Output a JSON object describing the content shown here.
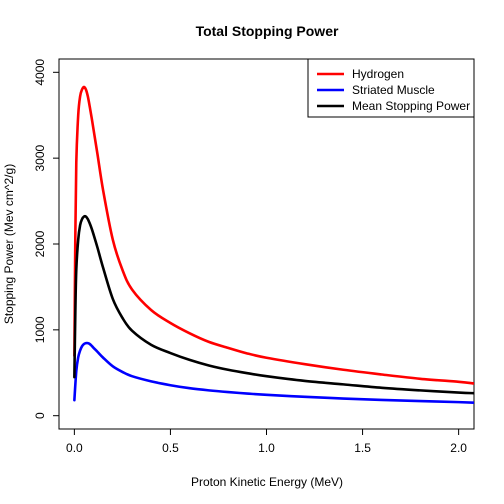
{
  "chart_data": {
    "type": "line",
    "title": "Total Stopping Power",
    "xlabel": "Proton Kinetic Energy (MeV)",
    "ylabel": "Stopping Power (Mev cm^2/g)",
    "xlim": [
      -0.08,
      2.08
    ],
    "ylim": [
      -155,
      4155
    ],
    "xticks": [
      0,
      0.5,
      1,
      1.5,
      2
    ],
    "xtick_labels": [
      "0.0",
      "0.5",
      "1.0",
      "1.5",
      "2.0"
    ],
    "yticks": [
      0,
      1000,
      2000,
      3000,
      4000
    ],
    "ytick_labels": [
      "0",
      "1000",
      "2000",
      "3000",
      "4000"
    ],
    "grid": false,
    "legend_position": "top-right",
    "series": [
      {
        "name": "Hydrogen",
        "color": "#ff0000",
        "x": [
          0.0,
          0.005,
          0.01,
          0.02,
          0.03,
          0.04,
          0.05,
          0.06,
          0.07,
          0.08,
          0.09,
          0.1,
          0.12,
          0.15,
          0.2,
          0.25,
          0.3,
          0.4,
          0.5,
          0.6,
          0.7,
          0.8,
          0.9,
          1.0,
          1.2,
          1.4,
          1.6,
          1.8,
          2.0,
          2.08
        ],
        "y": [
          700,
          2100,
          2950,
          3500,
          3720,
          3800,
          3830,
          3800,
          3720,
          3600,
          3470,
          3330,
          3050,
          2620,
          2050,
          1700,
          1470,
          1230,
          1080,
          960,
          860,
          790,
          725,
          675,
          600,
          535,
          480,
          430,
          395,
          375
        ]
      },
      {
        "name": "Striated Muscle",
        "color": "#0000ff",
        "x": [
          0.0,
          0.01,
          0.02,
          0.03,
          0.04,
          0.05,
          0.06,
          0.07,
          0.08,
          0.09,
          0.1,
          0.12,
          0.15,
          0.2,
          0.25,
          0.3,
          0.4,
          0.5,
          0.6,
          0.7,
          0.8,
          0.9,
          1.0,
          1.2,
          1.4,
          1.6,
          1.8,
          2.0,
          2.08
        ],
        "y": [
          180,
          520,
          680,
          760,
          810,
          835,
          845,
          845,
          835,
          815,
          790,
          745,
          675,
          575,
          510,
          460,
          400,
          355,
          320,
          295,
          275,
          258,
          243,
          220,
          200,
          184,
          170,
          158,
          152
        ]
      },
      {
        "name": "Mean Stopping Power",
        "color": "#000000",
        "x": [
          0.0,
          0.005,
          0.01,
          0.02,
          0.03,
          0.04,
          0.05,
          0.06,
          0.07,
          0.08,
          0.09,
          0.1,
          0.12,
          0.15,
          0.2,
          0.25,
          0.3,
          0.4,
          0.5,
          0.6,
          0.7,
          0.8,
          0.9,
          1.0,
          1.2,
          1.4,
          1.6,
          1.8,
          2.0,
          2.08
        ],
        "y": [
          450,
          1200,
          1700,
          2050,
          2220,
          2290,
          2320,
          2320,
          2290,
          2240,
          2180,
          2110,
          1960,
          1720,
          1360,
          1140,
          990,
          825,
          730,
          650,
          585,
          535,
          495,
          460,
          405,
          365,
          325,
          295,
          270,
          262
        ]
      }
    ]
  }
}
